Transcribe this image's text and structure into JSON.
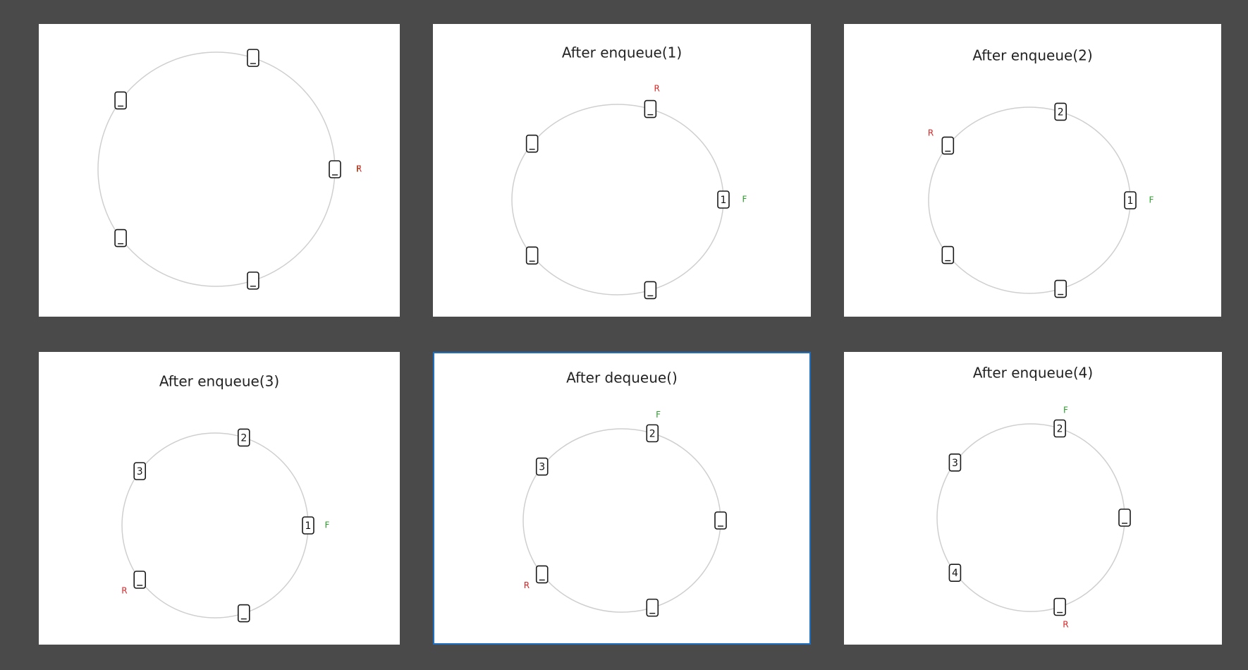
{
  "colors": {
    "background": "#4a4a4a",
    "panel": "#ffffff",
    "ring": "#cfcfcf",
    "slot_stroke": "#1a1a1a",
    "rear": "#d62728",
    "front": "#2ca02c",
    "selected_border": "#1f6fc0"
  },
  "capacity": 5,
  "markers": {
    "front": "F",
    "rear": "R"
  },
  "panels": [
    {
      "title": "",
      "slots": [
        "",
        "",
        "",
        "",
        ""
      ],
      "front": 0,
      "rear": 0,
      "selected": false
    },
    {
      "title": "After enqueue(1)",
      "slots": [
        "1",
        "",
        "",
        "",
        ""
      ],
      "front": 0,
      "rear": 1,
      "selected": false
    },
    {
      "title": "After enqueue(2)",
      "slots": [
        "1",
        "2",
        "",
        "",
        ""
      ],
      "front": 0,
      "rear": 2,
      "selected": false
    },
    {
      "title": "After enqueue(3)",
      "slots": [
        "1",
        "2",
        "3",
        "",
        ""
      ],
      "front": 0,
      "rear": 3,
      "selected": false
    },
    {
      "title": "After dequeue()",
      "slots": [
        "",
        "2",
        "3",
        "",
        ""
      ],
      "front": 1,
      "rear": 3,
      "selected": true
    },
    {
      "title": "After enqueue(4)",
      "slots": [
        "",
        "2",
        "3",
        "4",
        ""
      ],
      "front": 1,
      "rear": 4,
      "selected": false
    }
  ]
}
